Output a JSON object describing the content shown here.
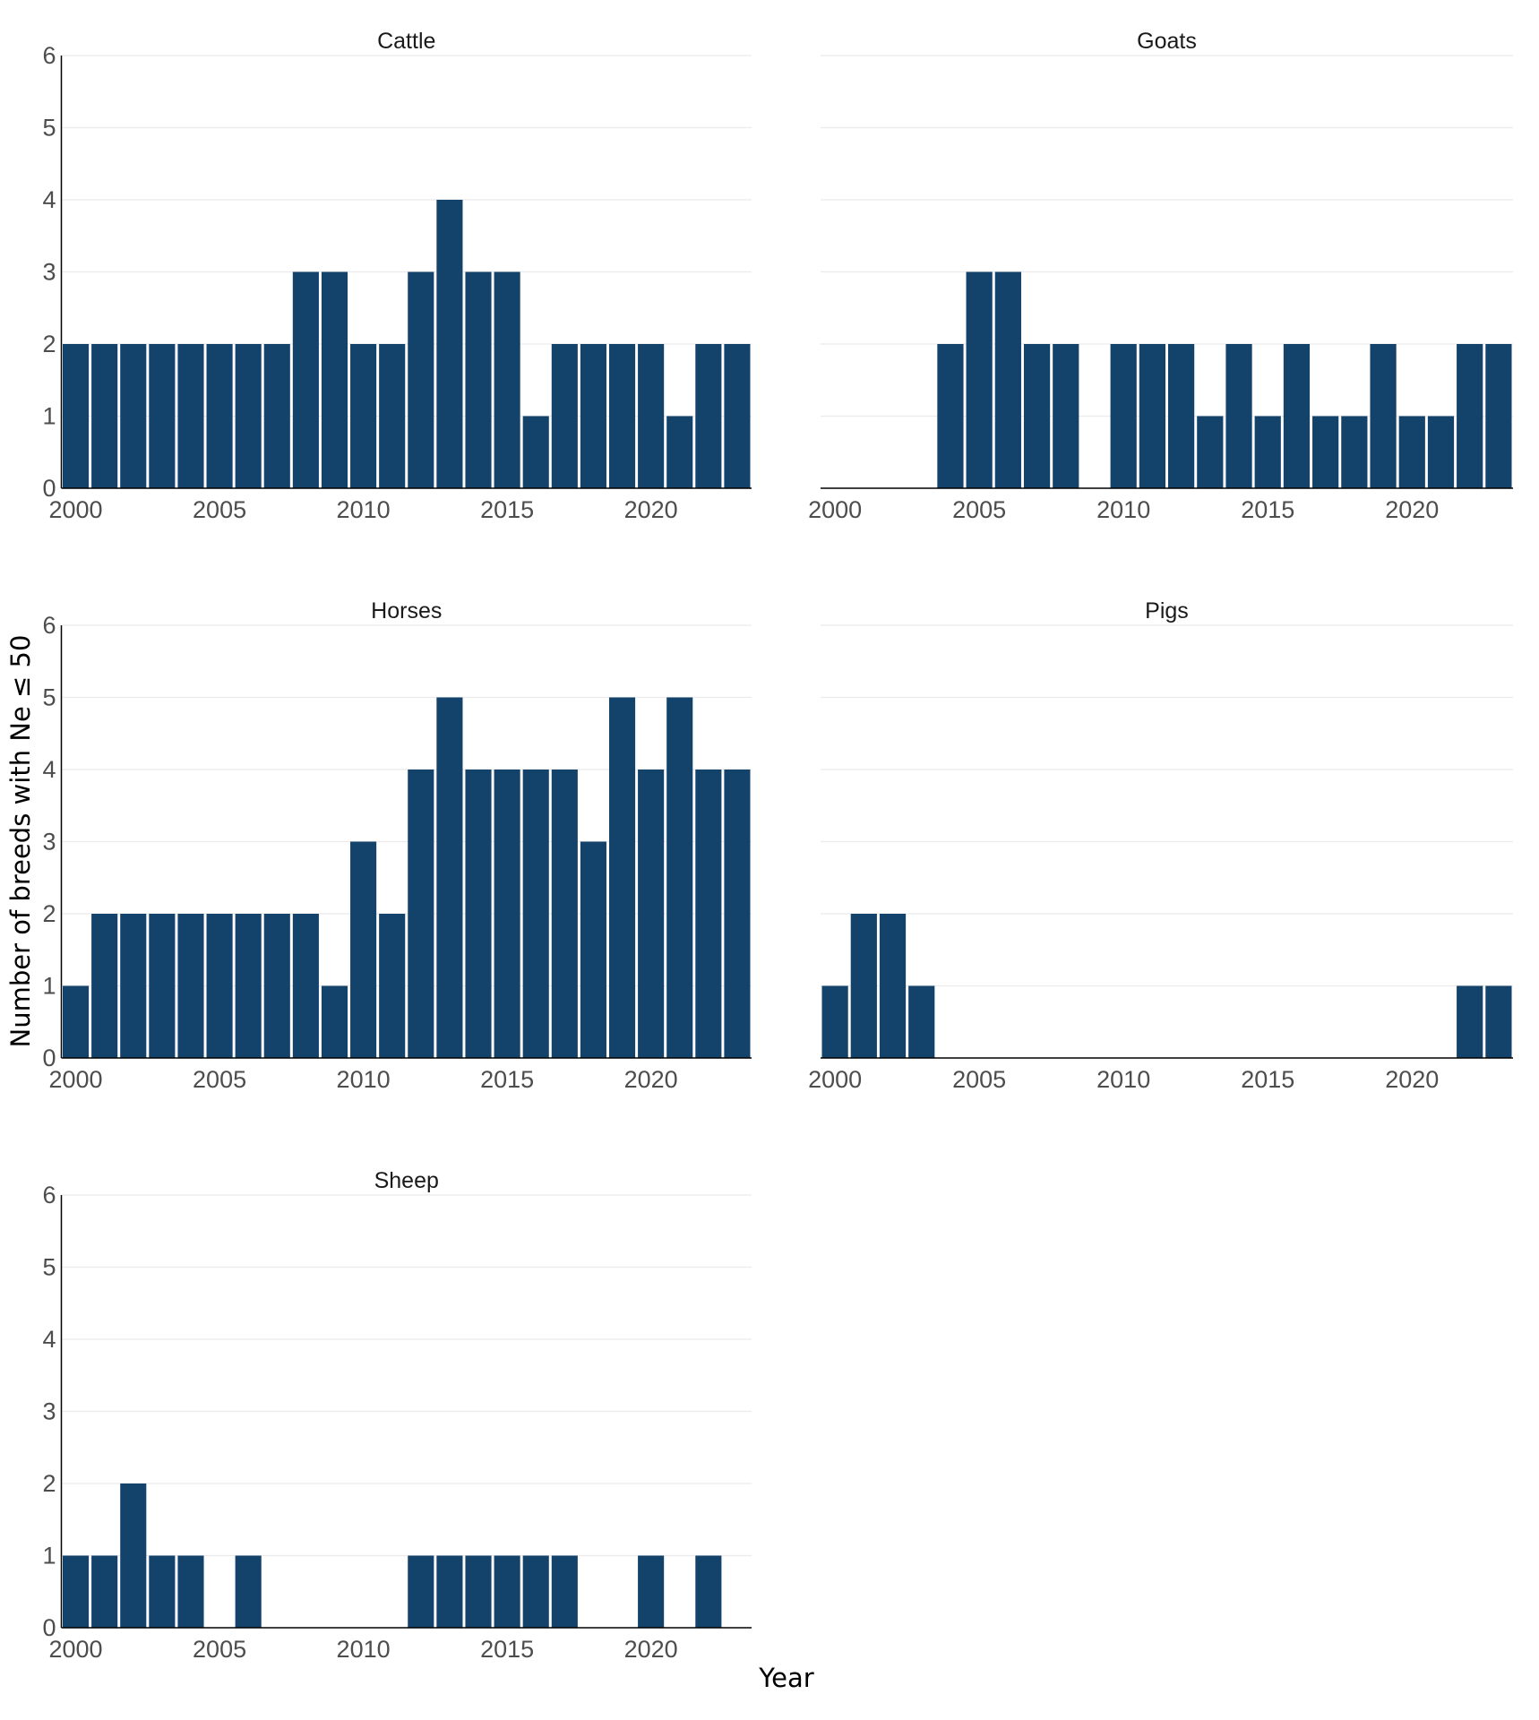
{
  "chart_data": {
    "type": "bar",
    "layout": "faceted small multiples, 2 columns",
    "xlabel": "Year",
    "ylabel": "Number of breeds with Ne ≤ 50",
    "xlim": [
      2000,
      2023
    ],
    "ylim": [
      0,
      6
    ],
    "x_ticks": [
      2000,
      2005,
      2010,
      2015,
      2020
    ],
    "y_ticks": [
      0,
      1,
      2,
      3,
      4,
      5,
      6
    ],
    "grid": "horizontal",
    "bar_color": "#13426b",
    "years": [
      2000,
      2001,
      2002,
      2003,
      2004,
      2005,
      2006,
      2007,
      2008,
      2009,
      2010,
      2011,
      2012,
      2013,
      2014,
      2015,
      2016,
      2017,
      2018,
      2019,
      2020,
      2021,
      2022,
      2023
    ],
    "panels": [
      {
        "title": "Cattle",
        "values": [
          2,
          2,
          2,
          2,
          2,
          2,
          2,
          2,
          3,
          3,
          2,
          2,
          3,
          4,
          3,
          3,
          1,
          2,
          2,
          2,
          2,
          1,
          2,
          2
        ]
      },
      {
        "title": "Goats",
        "values": [
          0,
          0,
          0,
          0,
          2,
          3,
          3,
          2,
          2,
          0,
          2,
          2,
          2,
          1,
          2,
          1,
          2,
          1,
          1,
          2,
          1,
          1,
          2,
          2
        ]
      },
      {
        "title": "Horses",
        "values": [
          1,
          2,
          2,
          2,
          2,
          2,
          2,
          2,
          2,
          1,
          3,
          2,
          4,
          5,
          4,
          4,
          4,
          4,
          3,
          5,
          4,
          5,
          4,
          4
        ]
      },
      {
        "title": "Pigs",
        "values": [
          1,
          2,
          2,
          1,
          0,
          0,
          0,
          0,
          0,
          0,
          0,
          0,
          0,
          0,
          0,
          0,
          0,
          0,
          0,
          0,
          0,
          0,
          1,
          1
        ]
      },
      {
        "title": "Sheep",
        "values": [
          1,
          1,
          2,
          1,
          1,
          0,
          1,
          0,
          0,
          0,
          0,
          0,
          1,
          1,
          1,
          1,
          1,
          1,
          0,
          0,
          1,
          0,
          1,
          0
        ]
      }
    ]
  }
}
